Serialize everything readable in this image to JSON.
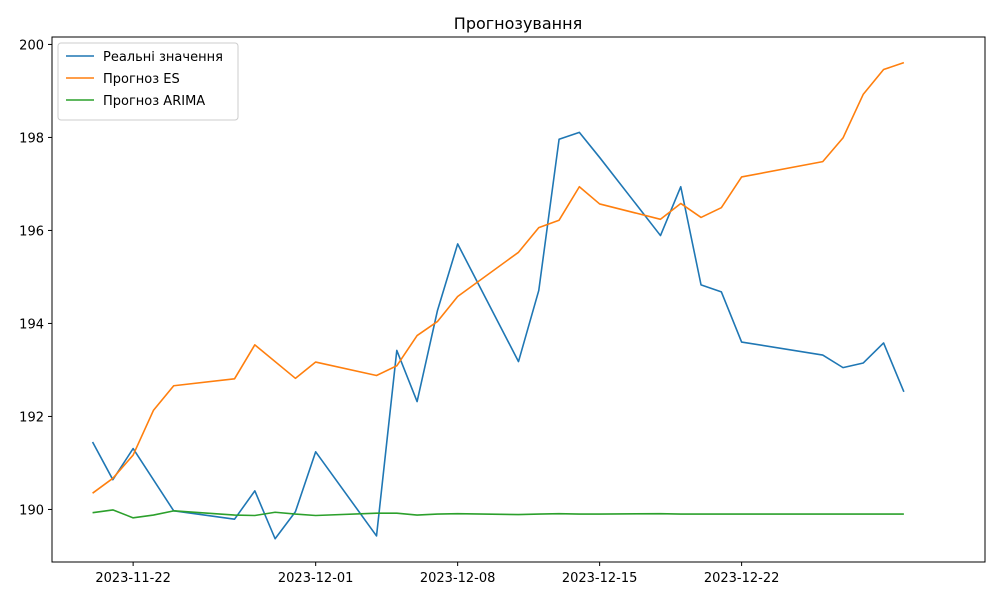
{
  "chart_data": {
    "type": "line",
    "title": "Прогнозування",
    "xlabel": "",
    "ylabel": "",
    "x_axis_type": "date",
    "xlim": [
      "2023-11-18",
      "2024-01-03"
    ],
    "ylim": [
      188.87,
      200.16
    ],
    "x_ticks": [
      "2023-11-22",
      "2023-12-01",
      "2023-12-08",
      "2023-12-15",
      "2023-12-22"
    ],
    "y_ticks": [
      190,
      192,
      194,
      196,
      198,
      200
    ],
    "grid": false,
    "legend_position": "upper-left",
    "x": [
      "2023-11-20",
      "2023-11-21",
      "2023-11-22",
      "2023-11-23",
      "2023-11-24",
      "2023-11-27",
      "2023-11-28",
      "2023-11-29",
      "2023-11-30",
      "2023-12-01",
      "2023-12-04",
      "2023-12-05",
      "2023-12-06",
      "2023-12-07",
      "2023-12-08",
      "2023-12-11",
      "2023-12-12",
      "2023-12-13",
      "2023-12-14",
      "2023-12-15",
      "2023-12-18",
      "2023-12-19",
      "2023-12-20",
      "2023-12-21",
      "2023-12-22",
      "2023-12-26",
      "2023-12-27",
      "2023-12-28",
      "2023-12-29",
      "2023-12-30"
    ],
    "series": [
      {
        "name": "Реальні значення",
        "color": "#1f77b4",
        "values": [
          191.45,
          190.64,
          191.31,
          null,
          189.97,
          189.79,
          190.4,
          189.37,
          189.95,
          191.24,
          189.43,
          193.42,
          192.32,
          194.27,
          195.71,
          193.18,
          194.71,
          197.96,
          198.11,
          197.57,
          195.89,
          196.94,
          194.83,
          194.68,
          193.6,
          193.32,
          193.05,
          193.15,
          193.58,
          192.53
        ]
      },
      {
        "name": "Прогноз ES",
        "color": "#ff7f0e",
        "values": [
          190.35,
          190.67,
          191.17,
          192.13,
          192.66,
          192.81,
          193.54,
          null,
          192.82,
          193.17,
          192.88,
          193.09,
          193.74,
          194.04,
          194.58,
          195.53,
          196.06,
          196.22,
          196.94,
          196.57,
          196.24,
          196.58,
          196.28,
          196.49,
          197.15,
          197.48,
          197.99,
          198.93,
          199.46,
          199.61
        ]
      },
      {
        "name": "Прогноз ARIMA",
        "color": "#2ca02c",
        "values": [
          189.93,
          189.99,
          189.82,
          189.88,
          189.97,
          189.88,
          189.87,
          189.94,
          189.9,
          189.87,
          189.92,
          189.92,
          189.88,
          189.9,
          189.91,
          189.89,
          189.9,
          189.91,
          189.9,
          189.9,
          189.91,
          189.9,
          189.9,
          189.9,
          189.9,
          189.9,
          189.9,
          189.9,
          189.9,
          189.9
        ]
      }
    ]
  }
}
